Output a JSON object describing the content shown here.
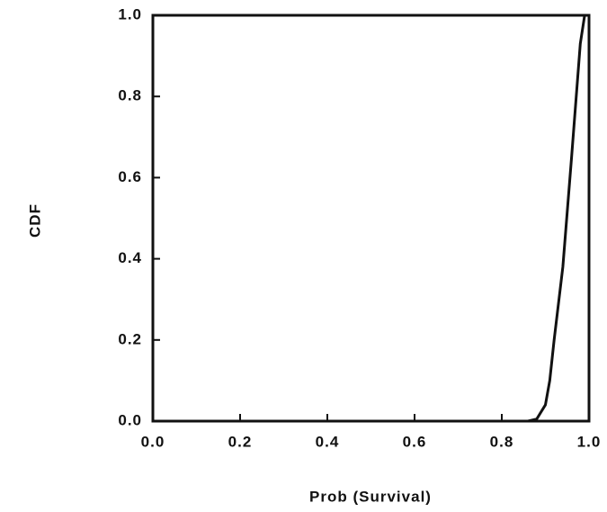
{
  "chart_data": {
    "type": "line",
    "x_label": "Prob (Survival)",
    "y_label": "CDF",
    "x": [
      0,
      0.86,
      0.88,
      0.9,
      0.91,
      0.92,
      0.94,
      0.96,
      0.98,
      0.99,
      1.0
    ],
    "series": [
      {
        "name": "CDF",
        "color": "#111111",
        "values": [
          0,
          0,
          0.005,
          0.04,
          0.1,
          0.2,
          0.38,
          0.65,
          0.93,
          1.0,
          1.0
        ]
      }
    ],
    "xlim": [
      0,
      1
    ],
    "ylim": [
      0,
      1
    ],
    "xticks": [
      {
        "value": 0,
        "label": "0.0"
      },
      0.2,
      0.4,
      0.6,
      0.8,
      {
        "value": 1,
        "label": "1.0"
      }
    ],
    "yticks": [
      {
        "value": 0,
        "label": "0.0"
      },
      0.2,
      0.4,
      0.6,
      0.8,
      {
        "value": 1,
        "label": "1.0"
      }
    ],
    "grid": false
  }
}
